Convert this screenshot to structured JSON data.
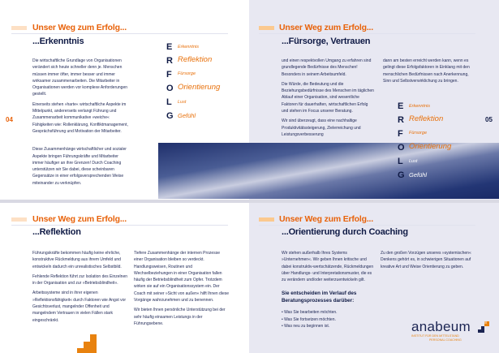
{
  "section_title": "Unser Weg zum Erfolg...",
  "pages": {
    "tl": {
      "subtitle": "...Erkenntnis",
      "page_number": "04",
      "paragraphs": [
        "Die wirtschaftliche Grundlage von Organisationen verändert sich heute schneller denn je. Menschen müssen immer öfter, immer besser und immer wirksamer zusammenarbeiten. Die Mitarbeiter in Organisationen werden vor komplexe Anforderungen gestellt.",
        "Einerseits stehen »harte« wirtschaftliche Aspekte im Mittelpunkt, andererseits verlangt Führung und Zusammenarbeit kommunikative »weiche« Fähigkeiten wie: Rollenklärung, Konfliktmanagement, Gesprächsführung und Motivation der Mitarbeiter.",
        "Diese Zusammenhänge wirtschaftlicher und sozialer Aspekte bringen Führungskräfte und Mitarbeiter immer häufiger an ihre Grenzen! Durch Coaching unterstützen wir Sie dabei, diese scheinbaren Gegensätze in einer erfolgsversprechenden Weise miteinander zu verknüpfen."
      ]
    },
    "tr": {
      "subtitle": "...Fürsorge, Vertrauen",
      "page_number": "05",
      "col1": [
        "und einen respektvollen Umgang zu erfahren sind grundlegende Bedürfnisse des Menschen! Besonders in seinem Arbeitsumfeld.",
        "Die Würde, die Bedeutung und die Beziehungsbedürfnisse des Menschen im täglichen Ablauf einer Organisation, sind wesentliche Faktoren für dauerhaften, wirtschaftlichen Erfolg und stehen im Focus unserer Beratung.",
        "Wir sind überzeugt, dass eine nachhaltige Produktivitätssteigerung, Zielerreichung und Leistungsverbesserung"
      ],
      "col2": [
        "dann am besten erreicht werden kann, wenn es gelingt diese Erfolgsfaktoren in Einklang mit den menschlichen Bedürfnissen nach Anerkennung, Sinn und Selbstverwirklichung zu bringen."
      ]
    },
    "bl": {
      "subtitle": "...Reflektion",
      "col1": [
        "Führungskräfte bekommen häufig keine ehrliche, konstruktive Rückmeldung aus ihrem Umfeld und entwickeln dadurch ein unrealistisches Selbstbild.",
        "Fehlende Reflektion führt zur Isolation des Einzelnen in der Organisation und zur »Betriebsblindheit«.",
        "Arbeitssysteme sind in ihrer eigenen »Reflektionsfähigkeit« durch Faktoren wie Angst vor Gesichtsverlust, mangelnder Offenheit und mangelndem Vertrauen in vielen Fällen stark eingeschränkt."
      ],
      "col2": [
        "Tiefere Zusammenhänge der internen Prozesse einer Organisation bleiben so verdeckt. Handlungsweisen, Routinen und Wechselbeziehungen in einer Organisation fallen häufig der Betriebsblindheit zum Opfer. Trotzdem wirken sie auf ein Organisationssystem ein. Der Coach mit seiner »Sicht von außen« hilft Ihnen diese Vorgänge wahrzunehmen und zu benennen.",
        "Wir bieten Ihnen persönliche Unterstützung bei der sehr häufig einsamen Leistungs in der Führungsebene."
      ]
    },
    "br": {
      "subtitle": "...Orientierung durch Coaching",
      "col1": [
        "Wir stehen außerhalb Ihres Systems »Unternehmen«. Wir geben Ihnen kritische und dabei konstruktiv-wertschätzende, Rückmeldungen über Handlungs- und Interpretationsmuster, die es zu verändern und/oder weiterzuentwickeln gilt."
      ],
      "bold_heading": "Sie entscheiden im Verlauf des Beratungsprozesses darüber:",
      "bullets": [
        "• Was Sie bearbeiten möchten.",
        "• Was Sie fortsetzen möchten.",
        "• Was neu zu beginnen ist."
      ],
      "col2": [
        "Zu den großen Vorzügen unseres »systemischen« Denkens gehört es, in schwierigen Situationen auf kreative Art und Weise Orientierung zu geben."
      ]
    }
  },
  "erfolg": {
    "letters": [
      "E",
      "R",
      "F",
      "O",
      "L",
      "G"
    ],
    "words": [
      "Erkenntnis",
      "Reflektion",
      "Fürsorge",
      "Orientierung",
      "Lust",
      "Gefühl"
    ]
  },
  "logo": {
    "name": "anabeum",
    "tagline1": "Institut für den Mittelstand",
    "tagline2": "Personal Coaching"
  },
  "colors": {
    "accent": "#e8620a",
    "navy": "#0f1a45",
    "right_page_bg": "#e8e8f2"
  }
}
